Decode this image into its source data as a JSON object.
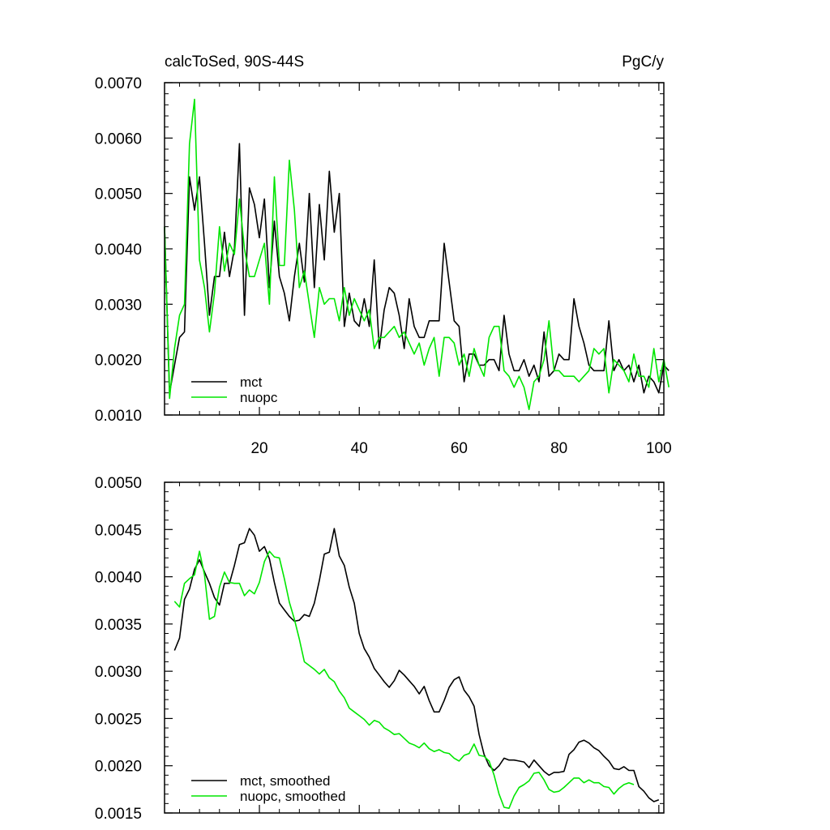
{
  "colors": {
    "mct": "#000000",
    "nuopc": "#00e600",
    "axis": "#000000",
    "background": "#ffffff"
  },
  "chart_data": [
    {
      "type": "line",
      "title_left": "calcToSed, 90S-44S",
      "title_right": "PgC/y",
      "xlabel": "",
      "ylabel": "",
      "xlim": [
        1,
        101
      ],
      "ylim": [
        0.001,
        0.007
      ],
      "xticks": [
        20,
        40,
        60,
        80,
        100
      ],
      "xtick_labels": [
        "20",
        "40",
        "60",
        "80",
        "100"
      ],
      "yticks": [
        0.001,
        0.002,
        0.003,
        0.004,
        0.005,
        0.006,
        0.007
      ],
      "ytick_labels": [
        "0.0010",
        "0.0020",
        "0.0030",
        "0.0040",
        "0.0050",
        "0.0060",
        "0.0070"
      ],
      "legend_position": "bottom-left",
      "x_start": 1,
      "series": [
        {
          "name": "mct",
          "color": "#000000",
          "values": [
            0.0044,
            0.0014,
            0.0019,
            0.0024,
            0.0025,
            0.0053,
            0.0047,
            0.0053,
            0.0041,
            0.0028,
            0.0035,
            0.0035,
            0.0043,
            0.0035,
            0.004,
            0.0059,
            0.0028,
            0.0051,
            0.0048,
            0.0042,
            0.0049,
            0.0033,
            0.0045,
            0.0035,
            0.0032,
            0.0027,
            0.0035,
            0.0041,
            0.0034,
            0.005,
            0.0033,
            0.0048,
            0.0038,
            0.0054,
            0.0043,
            0.005,
            0.0026,
            0.0032,
            0.0027,
            0.0026,
            0.0031,
            0.0026,
            0.0038,
            0.0022,
            0.0029,
            0.0033,
            0.0032,
            0.0028,
            0.0022,
            0.0031,
            0.0026,
            0.0024,
            0.0024,
            0.0027,
            0.0027,
            0.0027,
            0.0041,
            0.0034,
            0.0027,
            0.0026,
            0.0016,
            0.0021,
            0.0021,
            0.0019,
            0.0019,
            0.002,
            0.002,
            0.0018,
            0.0028,
            0.0021,
            0.0018,
            0.0018,
            0.002,
            0.0017,
            0.0019,
            0.0016,
            0.0025,
            0.0017,
            0.0018,
            0.0021,
            0.002,
            0.002,
            0.0031,
            0.0026,
            0.0023,
            0.0019,
            0.0018,
            0.0018,
            0.0018,
            0.0027,
            0.0018,
            0.002,
            0.0018,
            0.0019,
            0.0016,
            0.0019,
            0.0014,
            0.0017,
            0.0016,
            0.0014,
            0.0019,
            0.0018
          ]
        },
        {
          "name": "nuopc",
          "color": "#00e600",
          "values": [
            0.0044,
            0.0013,
            0.0022,
            0.0028,
            0.003,
            0.0059,
            0.0067,
            0.0038,
            0.0033,
            0.0025,
            0.0032,
            0.0044,
            0.0036,
            0.0041,
            0.0039,
            0.0049,
            0.004,
            0.0035,
            0.0035,
            0.0038,
            0.0041,
            0.003,
            0.0053,
            0.0037,
            0.0037,
            0.0056,
            0.0047,
            0.0033,
            0.0036,
            0.003,
            0.0024,
            0.0033,
            0.003,
            0.0031,
            0.0031,
            0.0027,
            0.0033,
            0.0028,
            0.0031,
            0.0029,
            0.0027,
            0.0029,
            0.0022,
            0.0024,
            0.0024,
            0.0025,
            0.0026,
            0.0024,
            0.0025,
            0.0023,
            0.0021,
            0.0023,
            0.0019,
            0.0022,
            0.0024,
            0.0017,
            0.0024,
            0.0024,
            0.0023,
            0.0019,
            0.0021,
            0.0017,
            0.0022,
            0.0019,
            0.0017,
            0.0024,
            0.0026,
            0.0026,
            0.0018,
            0.0017,
            0.0015,
            0.0017,
            0.0015,
            0.0011,
            0.0016,
            0.0017,
            0.002,
            0.0027,
            0.0018,
            0.0018,
            0.0017,
            0.0017,
            0.0017,
            0.0016,
            0.0017,
            0.0018,
            0.0022,
            0.0021,
            0.0022,
            0.0014,
            0.002,
            0.0019,
            0.0018,
            0.0016,
            0.0021,
            0.0017,
            0.0017,
            0.0015,
            0.0022,
            0.0016,
            0.002,
            0.0015
          ]
        }
      ],
      "legend": [
        "mct",
        "nuopc"
      ]
    },
    {
      "type": "line",
      "xlabel": "",
      "ylabel": "",
      "xlim": [
        1,
        101
      ],
      "ylim": [
        0.0015,
        0.005
      ],
      "xticks": [
        20,
        40,
        60,
        80,
        100
      ],
      "xtick_labels": [],
      "yticks": [
        0.0015,
        0.002,
        0.0025,
        0.003,
        0.0035,
        0.004,
        0.0045,
        0.005
      ],
      "ytick_labels": [
        "0.0015",
        "0.0020",
        "0.0025",
        "0.0030",
        "0.0035",
        "0.0040",
        "0.0045",
        "0.0050"
      ],
      "legend_position": "bottom-left",
      "x_start": 3,
      "series": [
        {
          "name": "mct, smoothed",
          "color": "#000000",
          "values": [
            0.00322,
            0.00335,
            0.00376,
            0.00387,
            0.00408,
            0.00418,
            0.00405,
            0.00393,
            0.00378,
            0.0037,
            0.00393,
            0.00393,
            0.00412,
            0.00434,
            0.00436,
            0.00451,
            0.00444,
            0.00427,
            0.00432,
            0.00419,
            0.00394,
            0.00372,
            0.00365,
            0.00358,
            0.00353,
            0.00354,
            0.0036,
            0.00358,
            0.00372,
            0.00396,
            0.00424,
            0.00426,
            0.00451,
            0.00422,
            0.00412,
            0.00389,
            0.00372,
            0.0034,
            0.00324,
            0.00315,
            0.00303,
            0.00296,
            0.00289,
            0.00283,
            0.0029,
            0.00301,
            0.00296,
            0.0029,
            0.00284,
            0.00276,
            0.00284,
            0.00269,
            0.00257,
            0.00257,
            0.00269,
            0.00283,
            0.00291,
            0.00294,
            0.0028,
            0.00273,
            0.00263,
            0.00233,
            0.00212,
            0.002,
            0.00195,
            0.002,
            0.00208,
            0.00206,
            0.00206,
            0.00205,
            0.00204,
            0.00198,
            0.00206,
            0.002,
            0.00194,
            0.0019,
            0.00193,
            0.00193,
            0.00194,
            0.00212,
            0.00217,
            0.00225,
            0.00227,
            0.00224,
            0.00219,
            0.00216,
            0.0021,
            0.00205,
            0.00197,
            0.00196,
            0.00199,
            0.00195,
            0.00195,
            0.00178,
            0.00173,
            0.00166,
            0.00162,
            0.00164
          ]
        },
        {
          "name": "nuopc, smoothed",
          "color": "#00e600",
          "values": [
            0.00374,
            0.00368,
            0.00393,
            0.00398,
            0.00402,
            0.00427,
            0.00402,
            0.00355,
            0.00358,
            0.00389,
            0.00405,
            0.00394,
            0.00393,
            0.00393,
            0.0038,
            0.00386,
            0.00382,
            0.00394,
            0.00416,
            0.00427,
            0.00421,
            0.0042,
            0.00398,
            0.00373,
            0.00355,
            0.00334,
            0.0031,
            0.00306,
            0.00302,
            0.00297,
            0.00302,
            0.00293,
            0.00289,
            0.00279,
            0.00272,
            0.00261,
            0.00257,
            0.00253,
            0.00249,
            0.00243,
            0.00248,
            0.00246,
            0.0024,
            0.00237,
            0.00233,
            0.00234,
            0.00229,
            0.00224,
            0.00222,
            0.00219,
            0.00224,
            0.00218,
            0.00215,
            0.00217,
            0.00214,
            0.00213,
            0.00208,
            0.00205,
            0.00211,
            0.00213,
            0.00223,
            0.00211,
            0.0021,
            0.00205,
            0.0019,
            0.0017,
            0.00156,
            0.00155,
            0.00168,
            0.00177,
            0.0018,
            0.00184,
            0.00192,
            0.00193,
            0.00185,
            0.00175,
            0.00172,
            0.00173,
            0.00177,
            0.00182,
            0.00187,
            0.00187,
            0.00182,
            0.00185,
            0.00182,
            0.00182,
            0.00178,
            0.00177,
            0.0017,
            0.00176,
            0.0018,
            0.00182,
            0.0018
          ]
        }
      ],
      "legend": [
        "mct, smoothed",
        "nuopc, smoothed"
      ]
    }
  ]
}
